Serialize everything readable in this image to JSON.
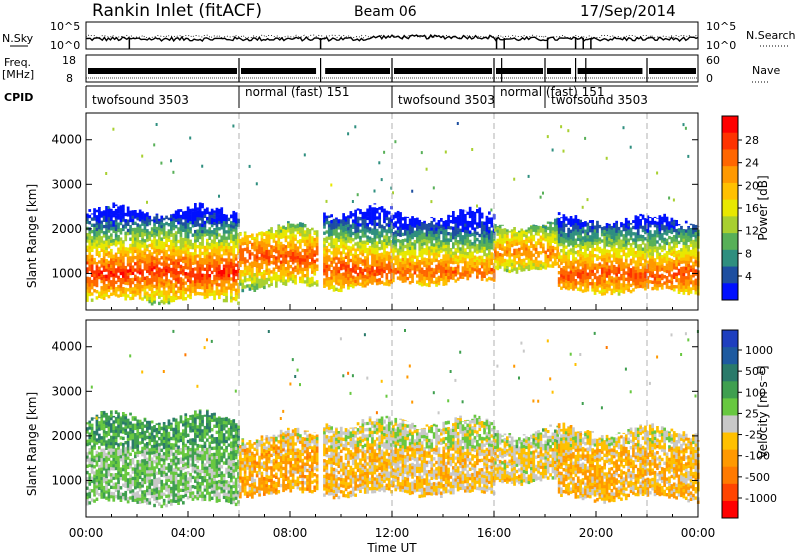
{
  "header": {
    "station": "Rankin Inlet (fitACF)",
    "beam": "Beam 06",
    "date": "17/Sep/2014"
  },
  "status_panels": {
    "nsky_label": "N.Sky",
    "nsky_ticks": [
      "10^5",
      "10^0"
    ],
    "nsearch_label": "N.Search",
    "nsearch_ticks": [
      "10^5",
      "10^0"
    ],
    "freq_label": "Freq.",
    "freq_unit": "[MHz]",
    "freq_ticks": [
      "18",
      "8"
    ],
    "nave_label": "Nave",
    "nave_ticks": [
      "60",
      "0"
    ],
    "cpid_label": "CPID",
    "cpid_segments": [
      {
        "label": "twofsound 3503",
        "start_h": 0.0,
        "end_h": 6.0
      },
      {
        "label": "normal (fast) 151",
        "start_h": 6.0,
        "end_h": 12.0
      },
      {
        "label": "twofsound 3503",
        "start_h": 12.0,
        "end_h": 16.0
      },
      {
        "label": "normal (fast) 151",
        "start_h": 16.0,
        "end_h": 18.0
      },
      {
        "label": "twofsound 3503",
        "start_h": 18.0,
        "end_h": 22.0
      }
    ]
  },
  "power_panel": {
    "ylabel": "Slant Range [km]",
    "yticks": [
      "4000",
      "3000",
      "2000",
      "1000"
    ],
    "colorbar_label": "Power [dB]",
    "colorbar_ticks": [
      "28",
      "24",
      "20",
      "16",
      "12",
      "8",
      "4"
    ],
    "colorbar_colors": [
      "#ff0000",
      "#ff3300",
      "#ff6600",
      "#ff9900",
      "#ffc000",
      "#e8e800",
      "#a8d030",
      "#58b058",
      "#2f8f7f",
      "#1e4fa0",
      "#0010ff"
    ]
  },
  "velocity_panel": {
    "ylabel": "Slant Range [km]",
    "yticks": [
      "4000",
      "3000",
      "2000",
      "1000"
    ],
    "colorbar_label": "Velocity  [m s⁻¹]",
    "colorbar_ticks": [
      "1000",
      "500",
      "100",
      "25",
      "-25",
      "-100",
      "-500",
      "-1000"
    ],
    "colorbar_colors": [
      "#1f3fbf",
      "#1e5aa0",
      "#2a7a6a",
      "#3f9f4f",
      "#68c840",
      "#c8c8c8",
      "#ffc000",
      "#ff9900",
      "#ff7a00",
      "#ff4400",
      "#ff0000"
    ]
  },
  "xaxis": {
    "label": "Time UT",
    "ticks": [
      "00:00",
      "04:00",
      "08:00",
      "12:00",
      "16:00",
      "20:00",
      "00:00"
    ]
  },
  "chart_data": [
    {
      "type": "heatmap",
      "title": "Power",
      "xlabel": "Time UT",
      "ylabel": "Slant Range [km]",
      "xlim": [
        0,
        24
      ],
      "ylim": [
        180,
        4600
      ],
      "colorbar": {
        "label": "Power [dB]",
        "range": [
          0,
          32
        ]
      },
      "backscatter_bands": [
        {
          "start_h": 0.0,
          "end_h": 6.0,
          "low_km": 400,
          "high_km": 2400,
          "core_km": 1000,
          "peak_db": 30
        },
        {
          "start_h": 6.0,
          "end_h": 9.1,
          "low_km": 700,
          "high_km": 2000,
          "core_km": 1350,
          "peak_db": 28
        },
        {
          "start_h": 9.3,
          "end_h": 12.0,
          "low_km": 700,
          "high_km": 2400,
          "core_km": 1050,
          "peak_db": 28
        },
        {
          "start_h": 12.0,
          "end_h": 16.0,
          "low_km": 800,
          "high_km": 2300,
          "core_km": 1000,
          "peak_db": 26
        },
        {
          "start_h": 16.0,
          "end_h": 18.5,
          "low_km": 1100,
          "high_km": 2100,
          "core_km": 1450,
          "peak_db": 24
        },
        {
          "start_h": 18.5,
          "end_h": 24.0,
          "low_km": 600,
          "high_km": 2200,
          "core_km": 950,
          "peak_db": 28
        }
      ]
    },
    {
      "type": "heatmap",
      "title": "Velocity",
      "xlabel": "Time UT",
      "ylabel": "Slant Range [km]",
      "xlim": [
        0,
        24
      ],
      "ylim": [
        180,
        4600
      ],
      "colorbar": {
        "label": "Velocity [m s-1]",
        "range": [
          -1000,
          1000
        ]
      },
      "backscatter_bands": [
        {
          "start_h": 0.0,
          "end_h": 6.0,
          "low_km": 500,
          "high_km": 2400,
          "velocity": 200
        },
        {
          "start_h": 6.0,
          "end_h": 9.1,
          "low_km": 700,
          "high_km": 2000,
          "velocity": -300
        },
        {
          "start_h": 9.3,
          "end_h": 12.0,
          "low_km": 700,
          "high_km": 2300,
          "velocity": -200
        },
        {
          "start_h": 12.0,
          "end_h": 16.0,
          "low_km": 700,
          "high_km": 2300,
          "velocity": -150
        },
        {
          "start_h": 16.0,
          "end_h": 18.5,
          "low_km": 1000,
          "high_km": 2100,
          "velocity": -100
        },
        {
          "start_h": 18.5,
          "end_h": 24.0,
          "low_km": 600,
          "high_km": 2100,
          "velocity": -250
        }
      ]
    }
  ]
}
